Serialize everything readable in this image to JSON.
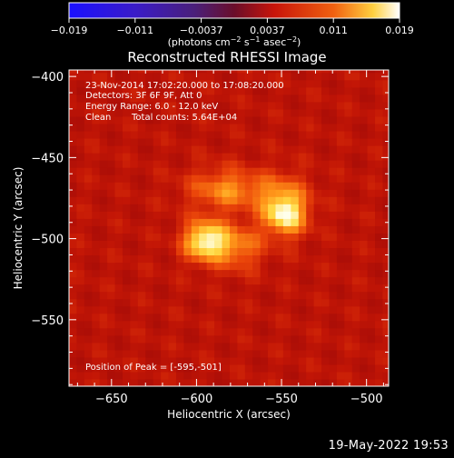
{
  "colorbar": {
    "ticks": [
      "−0.019",
      "−0.011",
      "−0.0037",
      "0.0037",
      "0.011",
      "0.019"
    ],
    "label_main": "(photons cm",
    "label_exp1": "−2",
    "label_mid": " s",
    "label_exp2": "−1",
    "label_end": " asec",
    "label_exp3": "−2",
    "label_close": ")"
  },
  "chart_data": {
    "type": "heatmap",
    "title": "Reconstructed RHESSI Image",
    "xlabel": "Heliocentric X (arcsec)",
    "ylabel": "Heliocentric Y (arcsec)",
    "xlim": [
      -675,
      -487
    ],
    "ylim": [
      -591,
      -396
    ],
    "x_ticks": [
      -650,
      -600,
      -550,
      -500
    ],
    "y_ticks": [
      -400,
      -450,
      -500,
      -550
    ],
    "x_tick_labels": [
      "−650",
      "−600",
      "−550",
      "−500"
    ],
    "y_tick_labels": [
      "−400",
      "−450",
      "−500",
      "−550"
    ],
    "colorscale": {
      "min": -0.019,
      "max": 0.019,
      "colormap": "blue-violet-red-yellow-white"
    },
    "sources": [
      {
        "x": -595,
        "y": -501,
        "peak": 0.019
      },
      {
        "x": -548,
        "y": -485,
        "peak": 0.014
      },
      {
        "x": -575,
        "y": -505,
        "peak": 0.01
      }
    ],
    "peak_position": [
      -595,
      -501
    ]
  },
  "annotations": {
    "line1": "23-Nov-2014 17:02:20.000 to 17:08:20.000",
    "line2": "Detectors: 3F 6F 9F, Att 0",
    "line3": "Energy Range: 6.0 - 12.0 keV",
    "line4_a": "Clean",
    "line4_b": "Total counts: 5.64E+04",
    "peak": "Position of Peak = [-595,-501]"
  },
  "timestamp": "19-May-2022 19:53"
}
